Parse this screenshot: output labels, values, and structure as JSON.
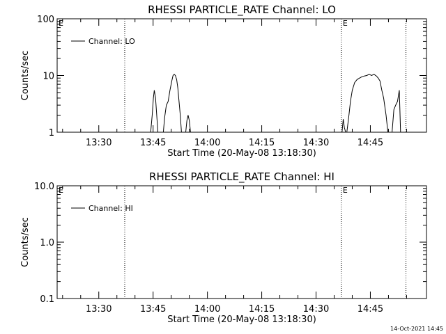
{
  "footer": {
    "timestamp": "14-Oct-2021 14:45"
  },
  "chart_data": [
    {
      "type": "line",
      "title": "RHESSI PARTICLE_RATE Channel: LO",
      "xlabel": "Start Time (20-May-08 13:18:30)",
      "ylabel": "Counts/sec",
      "yscale": "log",
      "ylim": [
        1,
        100
      ],
      "yticks": [
        {
          "value": 1,
          "label": "1"
        },
        {
          "value": 10,
          "label": "10"
        },
        {
          "value": 100,
          "label": "100"
        }
      ],
      "xlim": [
        "13:18:30",
        "15:00:30"
      ],
      "xticks": [
        "13:30",
        "13:45",
        "14:00",
        "14:15",
        "14:30",
        "14:45"
      ],
      "grid": false,
      "legend": {
        "placement": "top-left",
        "entries": [
          "Channel: LO"
        ]
      },
      "vlines_dotted": [
        "13:37:10",
        "14:37:00",
        "14:54:50"
      ],
      "event_markers": [
        {
          "x": "13:18:30",
          "label": "E"
        },
        {
          "x": "14:37:00",
          "label": "E"
        }
      ],
      "series": [
        {
          "name": "Channel: LO",
          "segments": [
            {
              "x": [
                "13:44:20",
                "13:44:45",
                "13:45:05",
                "13:45:20",
                "13:45:40",
                "13:46:00",
                "13:46:20"
              ],
              "y": [
                1.0,
                2.0,
                4.0,
                5.5,
                4.0,
                2.0,
                1.0
              ]
            },
            {
              "x": [
                "13:47:50",
                "13:48:10",
                "13:48:40",
                "13:49:10",
                "13:49:40",
                "13:50:10",
                "13:50:30",
                "13:50:50",
                "13:51:10",
                "13:51:30",
                "13:51:50",
                "13:52:10",
                "13:52:30",
                "13:52:50"
              ],
              "y": [
                1.0,
                1.8,
                3.0,
                3.5,
                5.5,
                8.0,
                10.0,
                10.5,
                10.0,
                8.5,
                6.0,
                3.5,
                2.0,
                1.0
              ]
            },
            {
              "x": [
                "13:54:00",
                "13:54:20",
                "13:54:40",
                "13:55:00",
                "13:55:20"
              ],
              "y": [
                1.0,
                1.6,
                2.0,
                1.6,
                1.0
              ]
            },
            {
              "x": [
                "14:37:10",
                "14:37:30",
                "14:37:50",
                "14:38:10"
              ],
              "y": [
                1.0,
                1.7,
                1.2,
                1.0
              ]
            },
            {
              "x": [
                "14:38:30",
                "14:39:00",
                "14:39:30",
                "14:40:00",
                "14:40:40",
                "14:41:20",
                "14:42:00",
                "14:42:40",
                "14:43:20",
                "14:44:00",
                "14:44:40",
                "14:45:20",
                "14:46:00",
                "14:46:40",
                "14:47:10",
                "14:47:40",
                "14:48:10",
                "14:48:40",
                "14:49:20",
                "14:49:50"
              ],
              "y": [
                1.0,
                1.8,
                3.5,
                5.5,
                7.5,
                8.5,
                9.0,
                9.5,
                9.8,
                10.0,
                10.5,
                10.0,
                10.5,
                9.8,
                9.0,
                8.0,
                5.5,
                4.0,
                2.0,
                1.0
              ]
            },
            {
              "x": [
                "14:51:00",
                "14:51:30",
                "14:52:00",
                "14:52:30",
                "14:53:00",
                "14:53:20"
              ],
              "y": [
                1.0,
                2.5,
                3.0,
                3.5,
                5.5,
                1.0
              ]
            }
          ]
        }
      ]
    },
    {
      "type": "line",
      "title": "RHESSI PARTICLE_RATE Channel: HI",
      "xlabel": "Start Time (20-May-08 13:18:30)",
      "ylabel": "Counts/sec",
      "yscale": "log",
      "ylim": [
        0.1,
        10
      ],
      "yticks": [
        {
          "value": 0.1,
          "label": "0.1"
        },
        {
          "value": 1,
          "label": "1.0"
        },
        {
          "value": 10,
          "label": "10.0"
        }
      ],
      "xlim": [
        "13:18:30",
        "15:00:30"
      ],
      "xticks": [
        "13:30",
        "13:45",
        "14:00",
        "14:15",
        "14:30",
        "14:45"
      ],
      "grid": false,
      "legend": {
        "placement": "top-left",
        "entries": [
          "Channel: HI"
        ]
      },
      "vlines_dotted": [
        "13:37:10",
        "14:37:00",
        "14:54:50"
      ],
      "event_markers": [
        {
          "x": "13:18:30",
          "label": "E"
        },
        {
          "x": "14:37:00",
          "label": "E"
        }
      ],
      "series": [
        {
          "name": "Channel: HI",
          "segments": []
        }
      ]
    }
  ]
}
